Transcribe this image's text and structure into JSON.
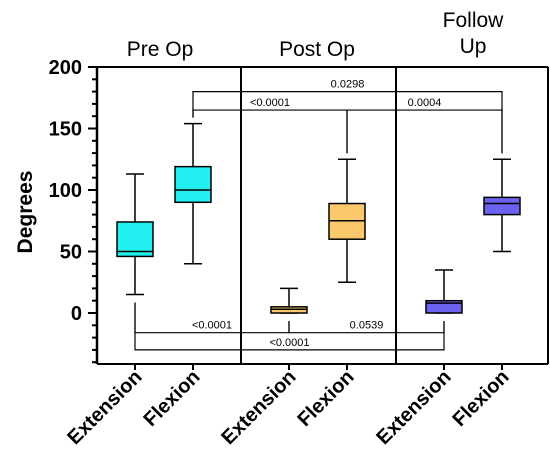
{
  "chart_data": {
    "type": "box",
    "ylabel": "Degrees",
    "ylim": [
      -40,
      200
    ],
    "yticks": [
      0,
      50,
      100,
      150,
      200
    ],
    "ytick_labels": [
      "0",
      "50",
      "100",
      "150",
      "200"
    ],
    "grid": false,
    "groups": [
      {
        "label": "Pre Op"
      },
      {
        "label": "Post Op"
      },
      {
        "label": "Follow Up",
        "label_lines": [
          "Follow",
          "Up"
        ]
      }
    ],
    "categories": [
      "Extension",
      "Flexion",
      "Extension",
      "Flexion",
      "Extension",
      "Flexion"
    ],
    "boxes": [
      {
        "group": 0,
        "category": "Extension",
        "color": "#22F0F0",
        "min": 15,
        "q1": 46,
        "median": 50,
        "q3": 74,
        "max": 113
      },
      {
        "group": 0,
        "category": "Flexion",
        "color": "#22F0F0",
        "min": 40,
        "q1": 90,
        "median": 100,
        "q3": 119,
        "max": 154
      },
      {
        "group": 1,
        "category": "Extension",
        "color": "#FBC96B",
        "min": 0,
        "q1": 0,
        "median": 3,
        "q3": 5,
        "max": 20
      },
      {
        "group": 1,
        "category": "Flexion",
        "color": "#FBC96B",
        "min": 25,
        "q1": 60,
        "median": 75,
        "q3": 89,
        "max": 125
      },
      {
        "group": 2,
        "category": "Extension",
        "color": "#6B63F0",
        "min": 0,
        "q1": 0,
        "median": 8,
        "q3": 10,
        "max": 35
      },
      {
        "group": 2,
        "category": "Flexion",
        "color": "#6B63F0",
        "min": 50,
        "q1": 80,
        "median": 89,
        "q3": 94,
        "max": 125
      }
    ],
    "comparisons": [
      {
        "from": 1,
        "to": 5,
        "y": 180,
        "side": "top",
        "label": "0.0298"
      },
      {
        "from": 1,
        "to": 3,
        "y": 165,
        "side": "top",
        "label": "<0.0001"
      },
      {
        "from": 3,
        "to": 5,
        "y": 165,
        "side": "top",
        "label": "0.0004"
      },
      {
        "from": 0,
        "to": 2,
        "y": -16,
        "side": "bottom",
        "label": "<0.0001"
      },
      {
        "from": 2,
        "to": 4,
        "y": -16,
        "side": "bottom",
        "label": "0.0539"
      },
      {
        "from": 0,
        "to": 4,
        "y": -30,
        "side": "bottom",
        "label": "<0.0001"
      }
    ]
  }
}
